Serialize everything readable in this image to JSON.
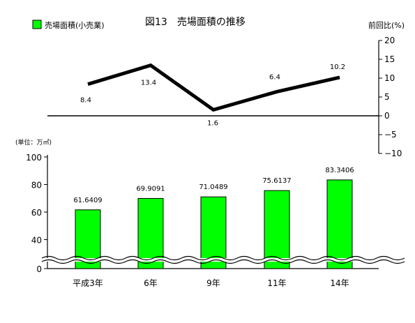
{
  "chart_data": [
    {
      "type": "line",
      "title": "図13　売場面積の推移",
      "ylabel": "前回比(%)",
      "ylim": [
        -10,
        20
      ],
      "yticks": [
        "20",
        "15",
        "10",
        "5",
        "0",
        "−5",
        "−10"
      ],
      "x": [
        "平成3年",
        "6年",
        "9年",
        "11年",
        "14年"
      ],
      "values": [
        8.4,
        13.4,
        1.6,
        6.4,
        10.2
      ],
      "labels": [
        "8.4",
        "13.4",
        "1.6",
        "6.4",
        "10.2"
      ],
      "color": "#000000"
    },
    {
      "type": "bar",
      "legend": "売場面積(小売業)",
      "unit_label": "(単位：万㎡)",
      "categories": [
        "平成3年",
        "6年",
        "9年",
        "11年",
        "14年"
      ],
      "values": [
        61.6409,
        69.9091,
        71.0489,
        75.6137,
        83.3406
      ],
      "labels": [
        "61.6409",
        "69.9091",
        "71.0489",
        "75.6137",
        "83.3406"
      ],
      "ylim": [
        0,
        100
      ],
      "yticks": [
        "100",
        "80",
        "60",
        "40",
        "0"
      ],
      "axis_break": true,
      "color": "#00ff00"
    }
  ]
}
